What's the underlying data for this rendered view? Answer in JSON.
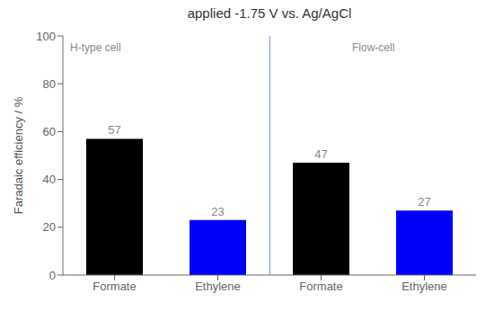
{
  "chart_data": {
    "type": "bar",
    "title": "applied -1.75 V vs. Ag/AgCl",
    "ylabel": "Faradaic efficiency / %",
    "categories": [
      "Formate",
      "Ethylene",
      "Formate",
      "Ethylene"
    ],
    "values": [
      57,
      23,
      47,
      27
    ],
    "colors": [
      "#000000",
      "#0000ff",
      "#000000",
      "#0000ff"
    ],
    "ylim": [
      0,
      100
    ],
    "yticks": [
      0,
      20,
      40,
      60,
      80,
      100
    ],
    "data_labels": true,
    "grid": false,
    "annotations": [
      "H-type cell",
      "Flow-cell"
    ]
  }
}
